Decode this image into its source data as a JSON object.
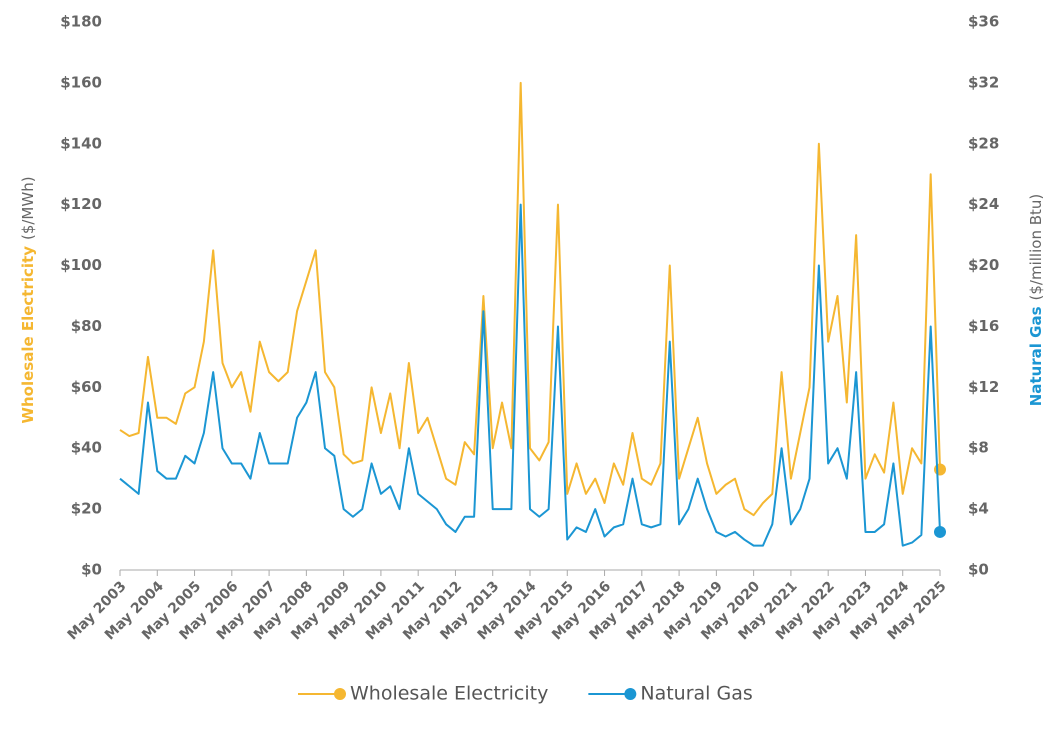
{
  "chart_data": {
    "type": "line",
    "y_unit": "($/MWh)",
    "y2_unit": "($/million Btu)",
    "categories": [
      "May 2003",
      null,
      null,
      null,
      "May 2004",
      null,
      null,
      null,
      "May 2005",
      null,
      null,
      null,
      "May 2006",
      null,
      null,
      null,
      "May 2007",
      null,
      null,
      null,
      "May 2008",
      null,
      null,
      null,
      "May 2009",
      null,
      null,
      null,
      "May 2010",
      null,
      null,
      null,
      "May 2011",
      null,
      null,
      null,
      "May 2012",
      null,
      null,
      null,
      "May 2013",
      null,
      null,
      null,
      "May 2014",
      null,
      null,
      null,
      "May 2015",
      null,
      null,
      null,
      "May 2016",
      null,
      null,
      null,
      "May 2017",
      null,
      null,
      null,
      "May 2018",
      null,
      null,
      null,
      "May 2019",
      null,
      null,
      null,
      "May 2020",
      null,
      null,
      null,
      "May 2021",
      null,
      null,
      null,
      "May 2022",
      null,
      null,
      null,
      "May 2023",
      null,
      null,
      null,
      "May 2024",
      null,
      null,
      null,
      "May 2025"
    ],
    "series": [
      {
        "name": "Wholesale Electricity",
        "color": "#f5b731",
        "values": [
          46,
          44,
          45,
          70,
          50,
          50,
          48,
          58,
          60,
          75,
          105,
          68,
          60,
          65,
          52,
          75,
          65,
          62,
          65,
          85,
          95,
          105,
          65,
          60,
          38,
          35,
          36,
          60,
          45,
          58,
          40,
          68,
          45,
          50,
          40,
          30,
          28,
          42,
          38,
          90,
          40,
          55,
          40,
          160,
          40,
          36,
          42,
          120,
          25,
          35,
          25,
          30,
          22,
          35,
          28,
          45,
          30,
          28,
          35,
          100,
          30,
          40,
          50,
          35,
          25,
          28,
          30,
          20,
          18,
          22,
          25,
          65,
          30,
          45,
          60,
          140,
          75,
          90,
          55,
          110,
          30,
          38,
          32,
          55,
          25,
          40,
          35,
          130,
          33
        ]
      },
      {
        "name": "Natural Gas",
        "color": "#1b96d3",
        "axis": "y2",
        "values": [
          6,
          5.5,
          5,
          11,
          6.5,
          6,
          6,
          7.5,
          7,
          9,
          13,
          8,
          7,
          7,
          6,
          9,
          7,
          7,
          7,
          10,
          11,
          13,
          8,
          7.5,
          4,
          3.5,
          4,
          7,
          5,
          5.5,
          4,
          8,
          5,
          4.5,
          4,
          3,
          2.5,
          3.5,
          3.5,
          17,
          4,
          4,
          4,
          24,
          4,
          3.5,
          4,
          16,
          2,
          2.8,
          2.5,
          4,
          2.2,
          2.8,
          3,
          6,
          3,
          2.8,
          3,
          15,
          3,
          4,
          6,
          4,
          2.5,
          2.2,
          2.5,
          2,
          1.6,
          1.6,
          3,
          8,
          3,
          4,
          6,
          20,
          7,
          8,
          6,
          13,
          2.5,
          2.5,
          3,
          7,
          1.6,
          1.8,
          2.3,
          16,
          2.5
        ]
      }
    ],
    "ylim": [
      0,
      180
    ],
    "yticks": [
      {
        "value": 0,
        "label": "$0"
      },
      {
        "value": 20,
        "label": "$20"
      },
      {
        "value": 40,
        "label": "$40"
      },
      {
        "value": 60,
        "label": "$60"
      },
      {
        "value": 80,
        "label": "$80"
      },
      {
        "value": 100,
        "label": "$100"
      },
      {
        "value": 120,
        "label": "$120"
      },
      {
        "value": 140,
        "label": "$140"
      },
      {
        "value": 160,
        "label": "$160"
      },
      {
        "value": 180,
        "label": "$180"
      }
    ],
    "y2lim": [
      0,
      36
    ],
    "y2ticks": [
      {
        "value": 0,
        "label": "$0"
      },
      {
        "value": 4,
        "label": "$4"
      },
      {
        "value": 8,
        "label": "$8"
      },
      {
        "value": 12,
        "label": "$12"
      },
      {
        "value": 16,
        "label": "$16"
      },
      {
        "value": 20,
        "label": "$20"
      },
      {
        "value": 24,
        "label": "$24"
      },
      {
        "value": 28,
        "label": "$28"
      },
      {
        "value": 32,
        "label": "$32"
      },
      {
        "value": 36,
        "label": "$36"
      }
    ],
    "grid": false,
    "legend": "bottom"
  }
}
